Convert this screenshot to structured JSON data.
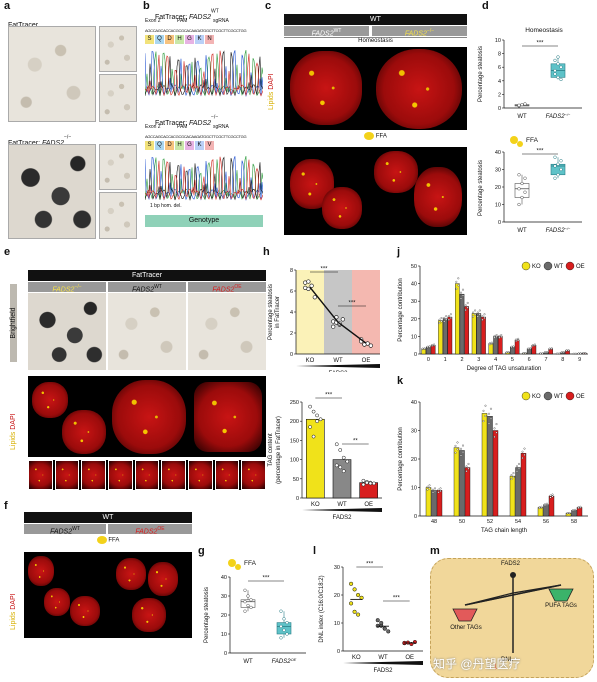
{
  "panel_labels": {
    "a": "a",
    "b": "b",
    "c": "c",
    "d": "d",
    "e": "e",
    "f": "f",
    "g": "g",
    "h": "h",
    "i": "i",
    "j": "j",
    "k": "k",
    "l": "l",
    "m": "m"
  },
  "a": {
    "top_label": "FatTracer",
    "bottom_label_prefix": "FatTracer; ",
    "bottom_label_gene": "FADS2",
    "bottom_label_sup": "−/−"
  },
  "b": {
    "top_title_prefix": "FatTracer; ",
    "top_title_gene": "FADS2",
    "top_title_sup": "WT",
    "top_row_labels": [
      "Exon 2",
      "PAM",
      "sgRNA"
    ],
    "top_seq": "AGCCAGCACCACGCGCACAAGATGGCTTCGCTTCGCCTGG",
    "top_aa": [
      "S",
      "Q",
      "D",
      "H",
      "G",
      "K",
      "N"
    ],
    "bottom_title_prefix": "FatTracer; ",
    "bottom_title_gene": "FADS2",
    "bottom_title_sup": "−/−",
    "bottom_row_labels": [
      "Exon 2",
      "PAM",
      "sgRNA"
    ],
    "bottom_seq": "AGCCAGCACCACGCGCACAAGATGGCTTCGCTTCGCCTGG",
    "bottom_aa": [
      "S",
      "Q",
      "D",
      "H",
      "G",
      "K",
      "V"
    ],
    "deletion_note": "1 bp hom. del.",
    "genotype_label": "Genotype"
  },
  "c": {
    "header": "WT",
    "col1_gene": "FADS2",
    "col1_sup": "WT",
    "col2_gene": "FADS2",
    "col2_sup": "−/−",
    "condition1": "Homeostasis",
    "condition2": "FFA",
    "side_label_lipids": "Lipids",
    "side_label_dapi": "DAPI"
  },
  "d": {
    "title1": "Homeostasis",
    "title2": "FFA",
    "ylabel": "Percentage steatosis",
    "xticks": [
      "WT",
      "FADS2"
    ],
    "xtick2_sup": "−/−",
    "yticks1": [
      "0",
      "2",
      "4",
      "6",
      "8",
      "10"
    ],
    "yticks2": [
      "0",
      "10",
      "20",
      "30",
      "40"
    ],
    "sig": "***"
  },
  "e": {
    "header": "FatTracer",
    "col1_gene": "FADS2",
    "col1_sup": "−/−",
    "col2_gene": "FADS2",
    "col2_sup": "WT",
    "col3_gene": "FADS2",
    "col3_sup": "OE",
    "side_brightfield": "Brightfield",
    "side_lipids": "Lipids",
    "side_dapi": "DAPI"
  },
  "f": {
    "header": "WT",
    "col1_gene": "FADS2",
    "col1_sup": "WT",
    "col2_gene": "FADS2",
    "col2_sup": "OE",
    "condition": "FFA",
    "side_lipids": "Lipids",
    "side_dapi": "DAPI"
  },
  "g": {
    "ylabel": "Percentage steatosis",
    "xticks": [
      "WT",
      "FADS2"
    ],
    "xtick2_sup": "OE",
    "yticks": [
      "0",
      "10",
      "20",
      "30",
      "40"
    ],
    "condition": "FFA",
    "sig": "***"
  },
  "h": {
    "ylabel1": "Percentage steatosis",
    "ylabel2": "in FatTracer",
    "xticks": [
      "KO",
      "WT",
      "OE"
    ],
    "xlabel": "FADS2",
    "yticks": [
      "0",
      "2",
      "4",
      "6",
      "8"
    ],
    "sig1": "***",
    "sig2": "***"
  },
  "i": {
    "ylabel1": "TAG content",
    "ylabel2": "(percentage in FatTracer)",
    "xticks": [
      "KO",
      "WT",
      "OE"
    ],
    "xlabel": "FADS2",
    "yticks": [
      "0",
      "50",
      "100",
      "150",
      "200",
      "250"
    ],
    "sig1": "***",
    "sig2": "**"
  },
  "l": {
    "ylabel": "DNL index (C16:0/C18:2)",
    "xticks": [
      "KO",
      "WT",
      "OE"
    ],
    "xlabel": "FADS2",
    "yticks": [
      "0",
      "10",
      "20",
      "30"
    ],
    "sig1": "***",
    "sig2": "***"
  },
  "m": {
    "top": "FADS2",
    "left": "Other TAGs",
    "right": "PUFA TAGs",
    "bottom": "DNL",
    "watermark": "知乎 @丹望医疗"
  },
  "chart_data": [
    {
      "id": "h",
      "type": "scatter",
      "categories": [
        "KO",
        "WT",
        "OE"
      ],
      "series": [
        {
          "values": [
            [
              6.8,
              6.2,
              6.5,
              5.4,
              6.3,
              6.9
            ],
            [
              3.1,
              3.0,
              2.8,
              3.3,
              2.6,
              3.5,
              2.9
            ],
            [
              1.4,
              0.9,
              1.0,
              0.8,
              1.2,
              0.9
            ]
          ]
        }
      ],
      "ylim": [
        0,
        8
      ]
    },
    {
      "id": "i",
      "type": "bar",
      "categories": [
        "KO",
        "WT",
        "OE"
      ],
      "values": [
        205,
        100,
        40
      ],
      "points": [
        [
          238,
          225,
          215,
          205,
          185,
          160,
          200
        ],
        [
          140,
          125,
          105,
          95,
          85,
          80,
          70
        ],
        [
          45,
          42,
          40,
          38,
          35,
          40,
          38
        ]
      ],
      "ylim": [
        0,
        250
      ],
      "colors": [
        "#f0e21a",
        "#888888",
        "#d81e1e"
      ]
    },
    {
      "id": "j",
      "type": "bar",
      "xlabel": "Degree of TAG unsaturation",
      "ylabel": "Percentage contribution",
      "categories": [
        "0",
        "1",
        "2",
        "3",
        "4",
        "5",
        "6",
        "7",
        "8",
        "9"
      ],
      "series": [
        {
          "name": "KO",
          "values": [
            3,
            19,
            40,
            23,
            6,
            1,
            0.5,
            0.3,
            0.2,
            0.1
          ]
        },
        {
          "name": "WT",
          "values": [
            4,
            20,
            34,
            23,
            10,
            4,
            3,
            1,
            1,
            0.3
          ]
        },
        {
          "name": "OE",
          "values": [
            5,
            21,
            27,
            21,
            10,
            8,
            5,
            3,
            2,
            0.5
          ]
        }
      ],
      "ylim": [
        0,
        50
      ],
      "yticks": [
        "0",
        "10",
        "20",
        "30",
        "40",
        "50"
      ],
      "legend": [
        "KO",
        "WT",
        "OE"
      ]
    },
    {
      "id": "k",
      "type": "bar",
      "xlabel": "TAG chain length",
      "ylabel": "Percentage contribution",
      "categories": [
        "48",
        "50",
        "52",
        "54",
        "56",
        "58"
      ],
      "series": [
        {
          "name": "KO",
          "values": [
            10,
            24,
            36,
            14,
            3,
            1
          ]
        },
        {
          "name": "WT",
          "values": [
            9,
            23,
            35,
            17,
            4,
            2
          ]
        },
        {
          "name": "OE",
          "values": [
            9,
            17,
            30,
            22,
            7,
            3
          ]
        }
      ],
      "ylim": [
        0,
        40
      ],
      "yticks": [
        "0",
        "10",
        "20",
        "30",
        "40"
      ],
      "legend": [
        "KO",
        "WT",
        "OE"
      ]
    },
    {
      "id": "l",
      "type": "scatter",
      "categories": [
        "KO",
        "WT",
        "OE"
      ],
      "series": [
        {
          "values": [
            [
              24,
              22,
              20,
              19,
              17,
              14,
              13
            ],
            [
              11,
              9,
              8,
              7,
              9,
              10,
              8
            ],
            [
              2.8,
              3,
              2.5,
              3.2,
              2.9
            ]
          ]
        }
      ],
      "ylim": [
        0,
        30
      ]
    },
    {
      "id": "d1",
      "type": "scatter",
      "categories": [
        "WT",
        "FADS2−/−"
      ],
      "series": [
        {
          "values": [
            [
              0.3,
              0.5,
              0.6,
              0.4
            ],
            [
              7,
              6.5,
              6,
              5,
              4.5,
              4.2,
              5.5,
              7.5
            ]
          ]
        }
      ],
      "ylim": [
        0,
        10
      ]
    },
    {
      "id": "d2",
      "type": "scatter",
      "categories": [
        "WT",
        "FADS2−/−"
      ],
      "series": [
        {
          "values": [
            [
              10,
              14,
              17,
              19,
              22,
              25,
              27
            ],
            [
              25,
              27,
              30,
              32,
              33,
              35,
              37
            ]
          ]
        }
      ],
      "ylim": [
        0,
        40
      ]
    },
    {
      "id": "g",
      "type": "scatter",
      "categories": [
        "WT",
        "FADS2OE"
      ],
      "series": [
        {
          "values": [
            [
              33,
              30,
              28,
              27,
              25,
              24,
              22
            ],
            [
              22,
              18,
              16,
              14,
              12,
              10,
              8
            ]
          ]
        }
      ],
      "ylim": [
        0,
        40
      ]
    }
  ],
  "colors": {
    "ko": "#f0e21a",
    "wt": "#6a6a6a",
    "oe": "#d81e1e",
    "box_teal": "#5ec2c8",
    "h_ko_band": "#fbf2b8",
    "h_wt_band": "#c6c6c6",
    "h_oe_band": "#f4b8b0"
  }
}
